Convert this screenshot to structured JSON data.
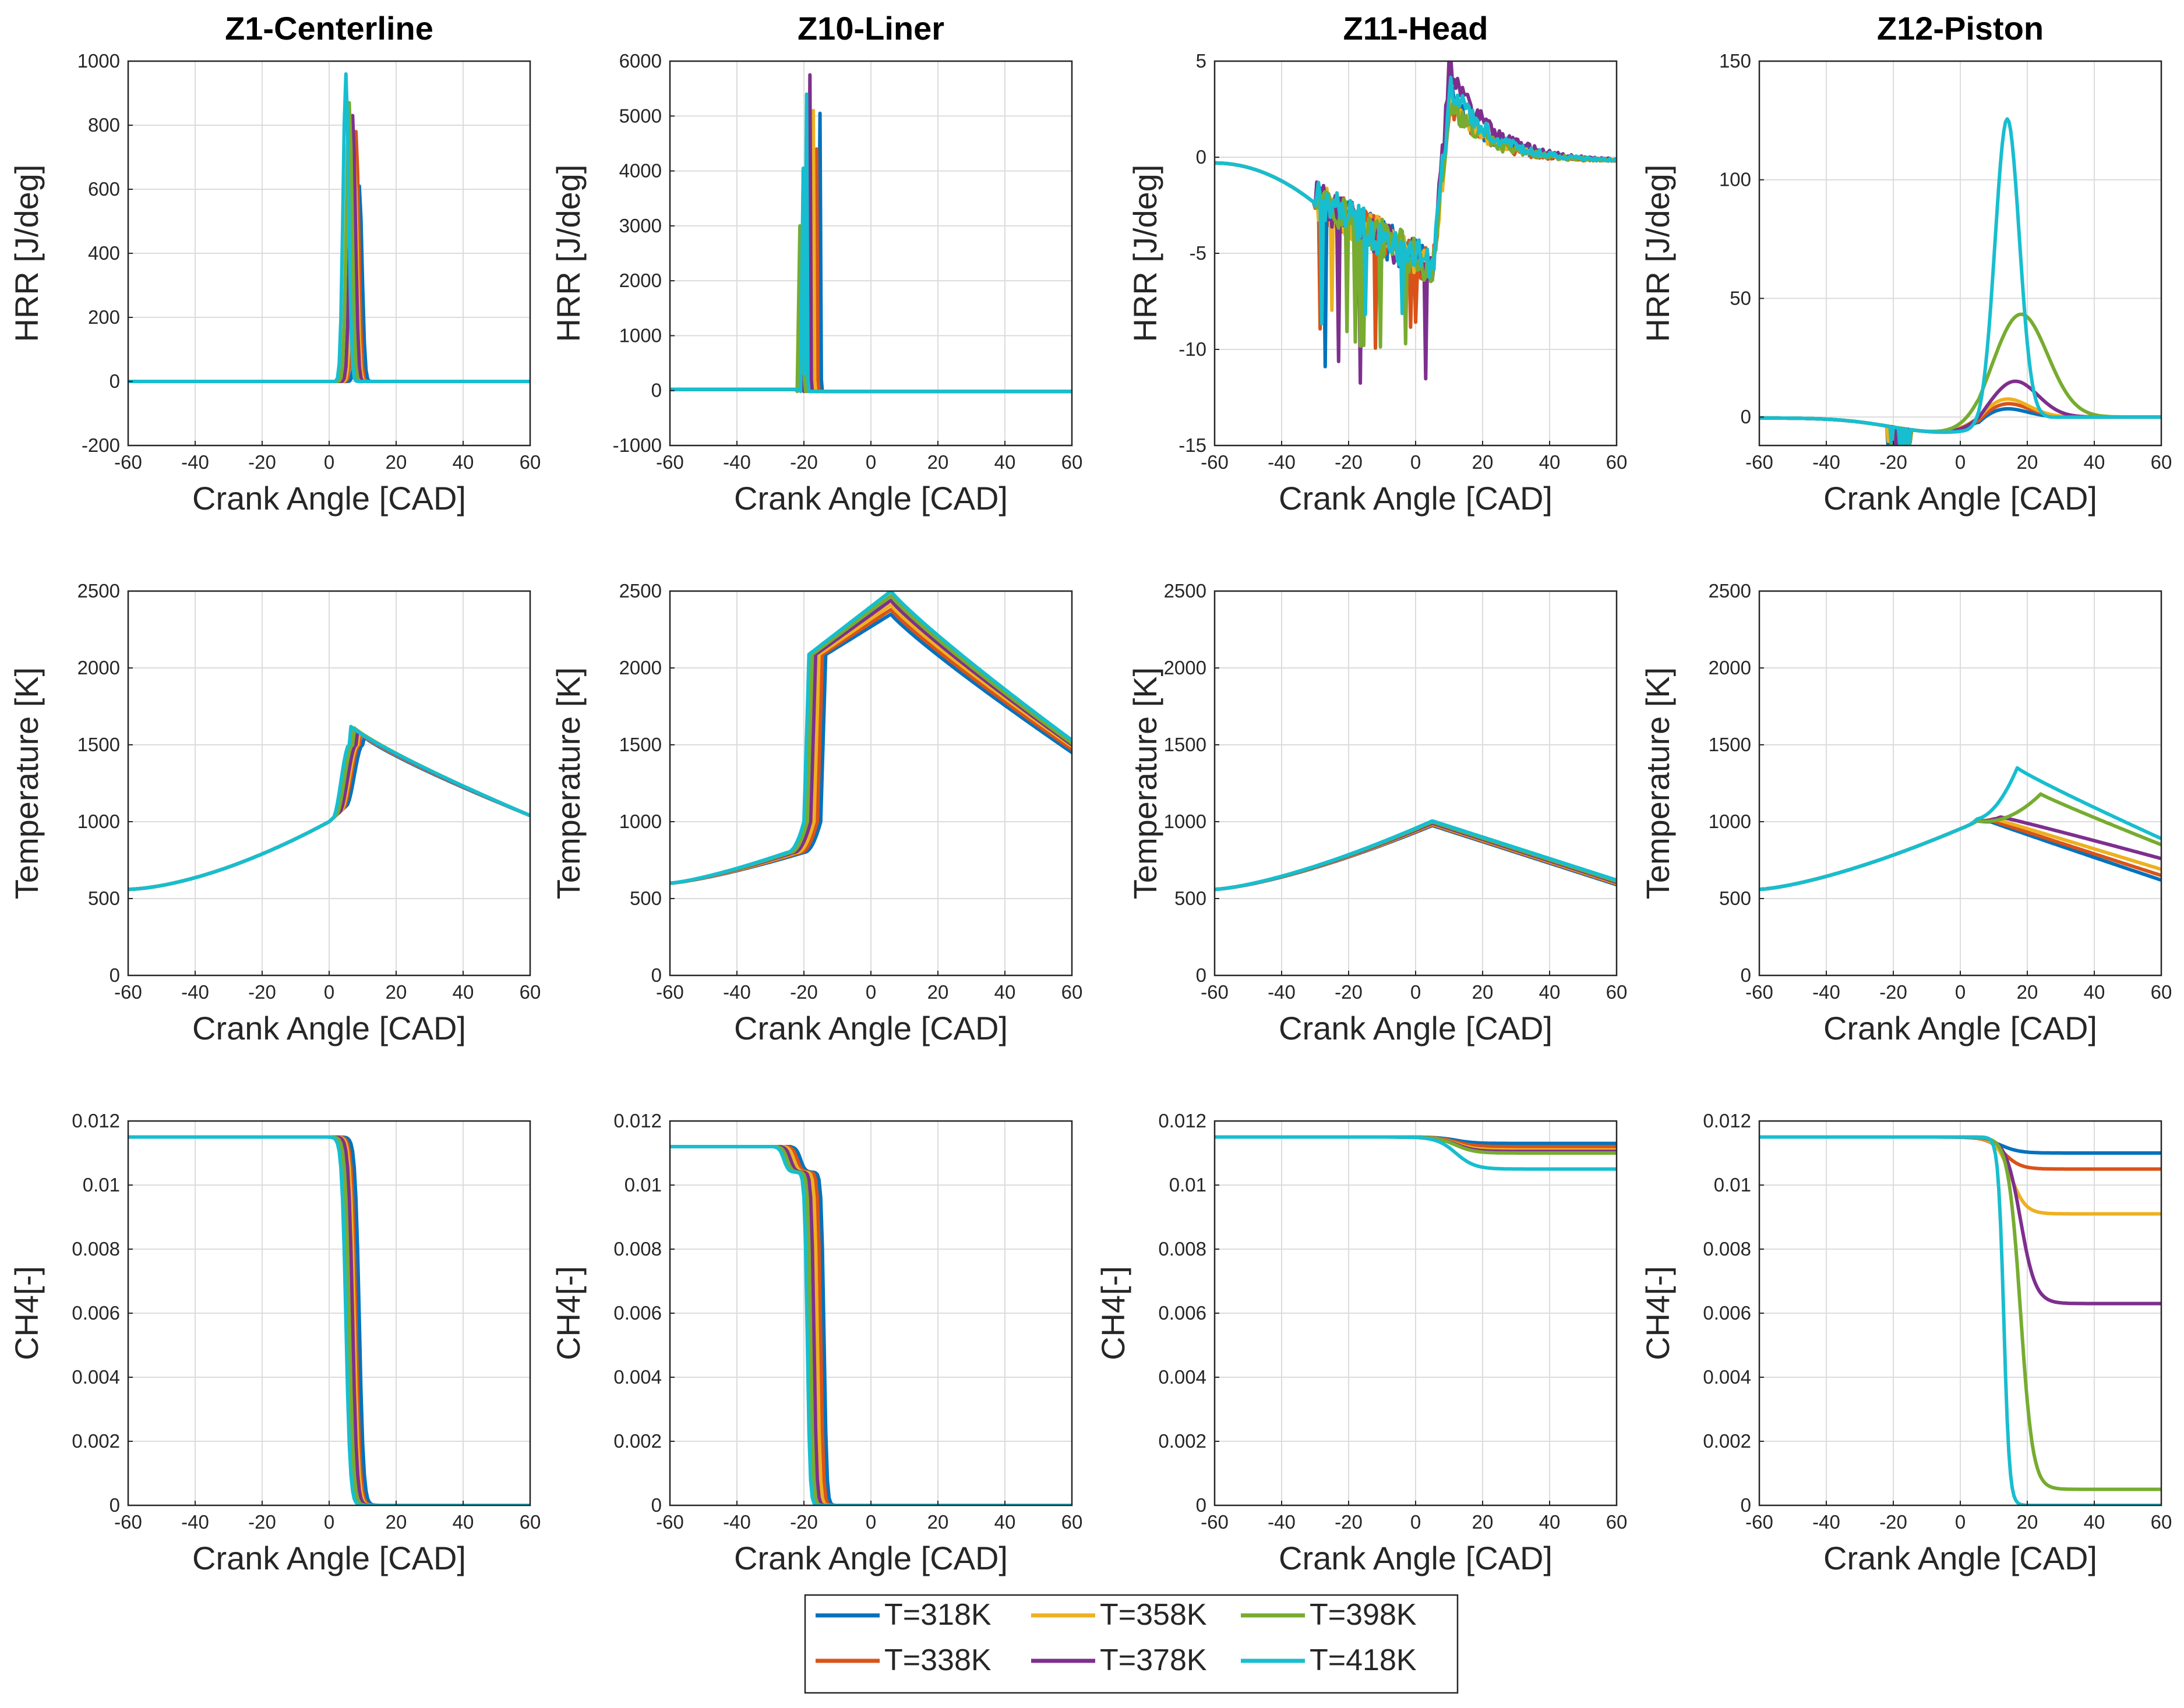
{
  "figure": {
    "column_titles": [
      "Z1-Centerline",
      "Z10-Liner",
      "Z11-Head",
      "Z12-Piston"
    ],
    "row_ylabels": [
      "HRR [J/deg]",
      "Temperature [K]",
      "CH4[-]"
    ],
    "xlabel": "Crank Angle [CAD]"
  },
  "legend": {
    "entries": [
      {
        "label": "T=318K",
        "color": "#0072BD"
      },
      {
        "label": "T=338K",
        "color": "#D95319"
      },
      {
        "label": "T=358K",
        "color": "#EDB120"
      },
      {
        "label": "T=378K",
        "color": "#7E2F8E"
      },
      {
        "label": "T=398K",
        "color": "#77AC30"
      },
      {
        "label": "T=418K",
        "color": "#17BECF"
      }
    ]
  },
  "chart_data": [
    {
      "type": "line",
      "row": 0,
      "col": 0,
      "title": "Z1-Centerline",
      "xlabel": "Crank Angle [CAD]",
      "ylabel": "HRR [J/deg]",
      "xlim": [
        -60,
        60
      ],
      "ylim": [
        -200,
        1000
      ],
      "xticks": [
        -60,
        -40,
        -20,
        0,
        20,
        40,
        60
      ],
      "yticks": [
        -200,
        0,
        200,
        400,
        600,
        800,
        1000
      ],
      "ytick_labels": [
        "-200",
        "0",
        "200",
        "400",
        "600",
        "800",
        "1000"
      ],
      "series": [
        {
          "name": "T=318K",
          "peak_x": 9,
          "peak_y": 610
        },
        {
          "name": "T=338K",
          "peak_x": 8,
          "peak_y": 780
        },
        {
          "name": "T=358K",
          "peak_x": 7.5,
          "peak_y": 700
        },
        {
          "name": "T=378K",
          "peak_x": 7,
          "peak_y": 830
        },
        {
          "name": "T=398K",
          "peak_x": 6,
          "peak_y": 870
        },
        {
          "name": "T=418K",
          "peak_x": 5,
          "peak_y": 960
        }
      ]
    },
    {
      "type": "line",
      "row": 0,
      "col": 1,
      "title": "Z10-Liner",
      "xlabel": "Crank Angle [CAD]",
      "ylabel": "HRR [J/deg]",
      "xlim": [
        -60,
        60
      ],
      "ylim": [
        -1000,
        6000
      ],
      "xticks": [
        -60,
        -40,
        -20,
        0,
        20,
        40,
        60
      ],
      "yticks": [
        -1000,
        0,
        1000,
        2000,
        3000,
        4000,
        5000,
        6000
      ],
      "ytick_labels": [
        "-1000",
        "0",
        "1000",
        "2000",
        "3000",
        "4000",
        "5000",
        "6000"
      ],
      "series": [
        {
          "name": "T=318K",
          "peak_x": -14,
          "peak_y": 5050
        },
        {
          "name": "T=338K",
          "peak_x": -15,
          "peak_y": 4400
        },
        {
          "name": "T=358K",
          "peak_x": -16,
          "peak_y": 5100
        },
        {
          "name": "T=378K",
          "peak_x": -17,
          "peak_y": 5750
        },
        {
          "name": "T=398K",
          "peak_x": -19,
          "peak_y": 4000
        },
        {
          "name": "T=418K",
          "peak_x": -18,
          "peak_y": 5400
        }
      ]
    },
    {
      "type": "line",
      "row": 0,
      "col": 2,
      "title": "Z11-Head",
      "xlabel": "Crank Angle [CAD]",
      "ylabel": "HRR [J/deg]",
      "xlim": [
        -60,
        60
      ],
      "ylim": [
        -15,
        5
      ],
      "xticks": [
        -60,
        -40,
        -20,
        0,
        20,
        40,
        60
      ],
      "yticks": [
        -15,
        -10,
        -5,
        0,
        5
      ],
      "ytick_labels": [
        "-15",
        "-10",
        "-5",
        "0",
        "5"
      ],
      "series": [
        {
          "name": "T=318K",
          "min_y": -11,
          "peak_y": 3.5
        },
        {
          "name": "T=338K",
          "min_y": -10,
          "peak_y": 3.0
        },
        {
          "name": "T=358K",
          "min_y": -9,
          "peak_y": 3.2
        },
        {
          "name": "T=378K",
          "min_y": -12,
          "peak_y": 5.0
        },
        {
          "name": "T=398K",
          "min_y": -10,
          "peak_y": 3.0
        },
        {
          "name": "T=418K",
          "min_y": -9.5,
          "peak_y": 4.0
        }
      ]
    },
    {
      "type": "line",
      "row": 0,
      "col": 3,
      "title": "Z12-Piston",
      "xlabel": "Crank Angle [CAD]",
      "ylabel": "HRR [J/deg]",
      "xlim": [
        -60,
        60
      ],
      "ylim": [
        -12,
        150
      ],
      "xticks": [
        -60,
        -40,
        -20,
        0,
        20,
        40,
        60
      ],
      "yticks": [
        0,
        50,
        100,
        150
      ],
      "ytick_labels": [
        "0",
        "50",
        "100",
        "150"
      ],
      "series": [
        {
          "name": "T=318K",
          "peak_x": 12,
          "peak_y": 5
        },
        {
          "name": "T=338K",
          "peak_x": 13,
          "peak_y": 7
        },
        {
          "name": "T=358K",
          "peak_x": 13,
          "peak_y": 9
        },
        {
          "name": "T=378K",
          "peak_x": 16,
          "peak_y": 16
        },
        {
          "name": "T=398K",
          "peak_x": 18,
          "peak_y": 44
        },
        {
          "name": "T=418K",
          "peak_x": 14,
          "peak_y": 127
        }
      ]
    },
    {
      "type": "line",
      "row": 1,
      "col": 0,
      "title": "",
      "xlabel": "Crank Angle [CAD]",
      "ylabel": "Temperature [K]",
      "xlim": [
        -60,
        60
      ],
      "ylim": [
        0,
        2500
      ],
      "xticks": [
        -60,
        -40,
        -20,
        0,
        20,
        40,
        60
      ],
      "yticks": [
        0,
        500,
        1000,
        1500,
        2000,
        2500
      ],
      "ytick_labels": [
        "0",
        "500",
        "1000",
        "1500",
        "2000",
        "2500"
      ],
      "series": [
        {
          "name": "T=318K",
          "ign_x": 9,
          "peak_y": 1560,
          "end_y": 1040
        },
        {
          "name": "T=338K",
          "ign_x": 8,
          "peak_y": 1580,
          "end_y": 1040
        },
        {
          "name": "T=358K",
          "ign_x": 7.5,
          "peak_y": 1590,
          "end_y": 1040
        },
        {
          "name": "T=378K",
          "ign_x": 7,
          "peak_y": 1600,
          "end_y": 1040
        },
        {
          "name": "T=398K",
          "ign_x": 6,
          "peak_y": 1620,
          "end_y": 1040
        },
        {
          "name": "T=418K",
          "ign_x": 5,
          "peak_y": 1630,
          "end_y": 1040
        }
      ]
    },
    {
      "type": "line",
      "row": 1,
      "col": 1,
      "title": "",
      "xlabel": "Crank Angle [CAD]",
      "ylabel": "Temperature [K]",
      "xlim": [
        -60,
        60
      ],
      "ylim": [
        0,
        2500
      ],
      "xticks": [
        -60,
        -40,
        -20,
        0,
        20,
        40,
        60
      ],
      "yticks": [
        0,
        500,
        1000,
        1500,
        2000,
        2500
      ],
      "ytick_labels": [
        "0",
        "500",
        "1000",
        "1500",
        "2000",
        "2500"
      ],
      "series": [
        {
          "name": "T=318K",
          "ign_x": -14,
          "peak_y": 2350,
          "end_y": 1450
        },
        {
          "name": "T=338K",
          "ign_x": -15,
          "peak_y": 2380,
          "end_y": 1470
        },
        {
          "name": "T=358K",
          "ign_x": -16,
          "peak_y": 2410,
          "end_y": 1490
        },
        {
          "name": "T=378K",
          "ign_x": -17,
          "peak_y": 2440,
          "end_y": 1500
        },
        {
          "name": "T=398K",
          "ign_x": -18,
          "peak_y": 2470,
          "end_y": 1510
        },
        {
          "name": "T=418K",
          "ign_x": -19,
          "peak_y": 2500,
          "end_y": 1530
        }
      ]
    },
    {
      "type": "line",
      "row": 1,
      "col": 2,
      "title": "",
      "xlabel": "Crank Angle [CAD]",
      "ylabel": "Temperature [K]",
      "xlim": [
        -60,
        60
      ],
      "ylim": [
        0,
        2500
      ],
      "xticks": [
        -60,
        -40,
        -20,
        0,
        20,
        40,
        60
      ],
      "yticks": [
        0,
        500,
        1000,
        1500,
        2000,
        2500
      ],
      "ytick_labels": [
        "0",
        "500",
        "1000",
        "1500",
        "2000",
        "2500"
      ],
      "series": [
        {
          "name": "T=318K",
          "peak_y": 975,
          "end_y": 590
        },
        {
          "name": "T=338K",
          "peak_y": 980,
          "end_y": 595
        },
        {
          "name": "T=358K",
          "peak_y": 985,
          "end_y": 600
        },
        {
          "name": "T=378K",
          "peak_y": 990,
          "end_y": 605
        },
        {
          "name": "T=398K",
          "peak_y": 998,
          "end_y": 612
        },
        {
          "name": "T=418K",
          "peak_y": 1005,
          "end_y": 620
        }
      ]
    },
    {
      "type": "line",
      "row": 1,
      "col": 3,
      "title": "",
      "xlabel": "Crank Angle [CAD]",
      "ylabel": "Temperature [K]",
      "xlim": [
        -60,
        60
      ],
      "ylim": [
        0,
        2500
      ],
      "xticks": [
        -60,
        -40,
        -20,
        0,
        20,
        40,
        60
      ],
      "yticks": [
        0,
        500,
        1000,
        1500,
        2000,
        2500
      ],
      "ytick_labels": [
        "0",
        "500",
        "1000",
        "1500",
        "2000",
        "2500"
      ],
      "series": [
        {
          "name": "T=318K",
          "peak_x": 9,
          "peak_y": 1000,
          "end_y": 620
        },
        {
          "name": "T=338K",
          "peak_x": 9,
          "peak_y": 1010,
          "end_y": 650
        },
        {
          "name": "T=358K",
          "peak_x": 10,
          "peak_y": 1020,
          "end_y": 690
        },
        {
          "name": "T=378K",
          "peak_x": 12,
          "peak_y": 1030,
          "end_y": 760
        },
        {
          "name": "T=398K",
          "peak_x": 24,
          "peak_y": 1180,
          "end_y": 850
        },
        {
          "name": "T=418K",
          "peak_x": 17,
          "peak_y": 1350,
          "end_y": 890
        }
      ]
    },
    {
      "type": "line",
      "row": 2,
      "col": 0,
      "title": "",
      "xlabel": "Crank Angle [CAD]",
      "ylabel": "CH4[-]",
      "xlim": [
        -60,
        60
      ],
      "ylim": [
        0,
        0.012
      ],
      "xticks": [
        -60,
        -40,
        -20,
        0,
        20,
        40,
        60
      ],
      "yticks": [
        0,
        0.002,
        0.004,
        0.006,
        0.008,
        0.01,
        0.012
      ],
      "ytick_labels": [
        "0",
        "0.002",
        "0.004",
        "0.006",
        "0.008",
        "0.01",
        "0.012"
      ],
      "series": [
        {
          "name": "T=318K",
          "init_y": 0.0115,
          "drop_x": 9,
          "final_y": 0
        },
        {
          "name": "T=338K",
          "init_y": 0.0115,
          "drop_x": 8,
          "final_y": 0
        },
        {
          "name": "T=358K",
          "init_y": 0.0115,
          "drop_x": 7.5,
          "final_y": 0
        },
        {
          "name": "T=378K",
          "init_y": 0.0115,
          "drop_x": 7,
          "final_y": 0
        },
        {
          "name": "T=398K",
          "init_y": 0.0115,
          "drop_x": 6,
          "final_y": 0
        },
        {
          "name": "T=418K",
          "init_y": 0.0115,
          "drop_x": 5,
          "final_y": 0
        }
      ]
    },
    {
      "type": "line",
      "row": 2,
      "col": 1,
      "title": "",
      "xlabel": "Crank Angle [CAD]",
      "ylabel": "CH4[-]",
      "xlim": [
        -60,
        60
      ],
      "ylim": [
        0,
        0.012
      ],
      "xticks": [
        -60,
        -40,
        -20,
        0,
        20,
        40,
        60
      ],
      "yticks": [
        0,
        0.002,
        0.004,
        0.006,
        0.008,
        0.01,
        0.012
      ],
      "ytick_labels": [
        "0",
        "0.002",
        "0.004",
        "0.006",
        "0.008",
        "0.01",
        "0.012"
      ],
      "series": [
        {
          "name": "T=318K",
          "init_y": 0.0112,
          "drop_x": -14,
          "final_y": 0
        },
        {
          "name": "T=338K",
          "init_y": 0.0112,
          "drop_x": -15,
          "final_y": 0
        },
        {
          "name": "T=358K",
          "init_y": 0.0112,
          "drop_x": -16,
          "final_y": 0
        },
        {
          "name": "T=378K",
          "init_y": 0.0112,
          "drop_x": -17,
          "final_y": 0
        },
        {
          "name": "T=398K",
          "init_y": 0.0112,
          "drop_x": -18,
          "final_y": 0
        },
        {
          "name": "T=418K",
          "init_y": 0.0112,
          "drop_x": -19,
          "final_y": 0
        }
      ]
    },
    {
      "type": "line",
      "row": 2,
      "col": 2,
      "title": "",
      "xlabel": "Crank Angle [CAD]",
      "ylabel": "CH4[-]",
      "xlim": [
        -60,
        60
      ],
      "ylim": [
        0,
        0.012
      ],
      "xticks": [
        -60,
        -40,
        -20,
        0,
        20,
        40,
        60
      ],
      "yticks": [
        0,
        0.002,
        0.004,
        0.006,
        0.008,
        0.01,
        0.012
      ],
      "ytick_labels": [
        "0",
        "0.002",
        "0.004",
        "0.006",
        "0.008",
        "0.01",
        "0.012"
      ],
      "series": [
        {
          "name": "T=318K",
          "init_y": 0.0115,
          "drop_x": 12,
          "final_y": 0.0113
        },
        {
          "name": "T=338K",
          "init_y": 0.0115,
          "drop_x": 12,
          "final_y": 0.0112
        },
        {
          "name": "T=358K",
          "init_y": 0.0115,
          "drop_x": 12,
          "final_y": 0.0111
        },
        {
          "name": "T=378K",
          "init_y": 0.0115,
          "drop_x": 12,
          "final_y": 0.01105
        },
        {
          "name": "T=398K",
          "init_y": 0.0115,
          "drop_x": 12,
          "final_y": 0.011
        },
        {
          "name": "T=418K",
          "init_y": 0.0115,
          "drop_x": 12,
          "final_y": 0.0105
        }
      ]
    },
    {
      "type": "line",
      "row": 2,
      "col": 3,
      "title": "",
      "xlabel": "Crank Angle [CAD]",
      "ylabel": "CH4[-]",
      "xlim": [
        -60,
        60
      ],
      "ylim": [
        0,
        0.012
      ],
      "xticks": [
        -60,
        -40,
        -20,
        0,
        20,
        40,
        60
      ],
      "yticks": [
        0,
        0.002,
        0.004,
        0.006,
        0.008,
        0.01,
        0.012
      ],
      "ytick_labels": [
        "0",
        "0.002",
        "0.004",
        "0.006",
        "0.008",
        "0.01",
        "0.012"
      ],
      "series": [
        {
          "name": "T=318K",
          "init_y": 0.0115,
          "drop_x": 12,
          "final_y": 0.011
        },
        {
          "name": "T=338K",
          "init_y": 0.0115,
          "drop_x": 13,
          "final_y": 0.0105
        },
        {
          "name": "T=358K",
          "init_y": 0.0115,
          "drop_x": 15,
          "final_y": 0.0091
        },
        {
          "name": "T=378K",
          "init_y": 0.0115,
          "drop_x": 18,
          "final_y": 0.0063
        },
        {
          "name": "T=398K",
          "init_y": 0.0115,
          "drop_x": 18,
          "final_y": 0.0005
        },
        {
          "name": "T=418K",
          "init_y": 0.0115,
          "drop_x": 13,
          "final_y": 0
        }
      ]
    }
  ]
}
